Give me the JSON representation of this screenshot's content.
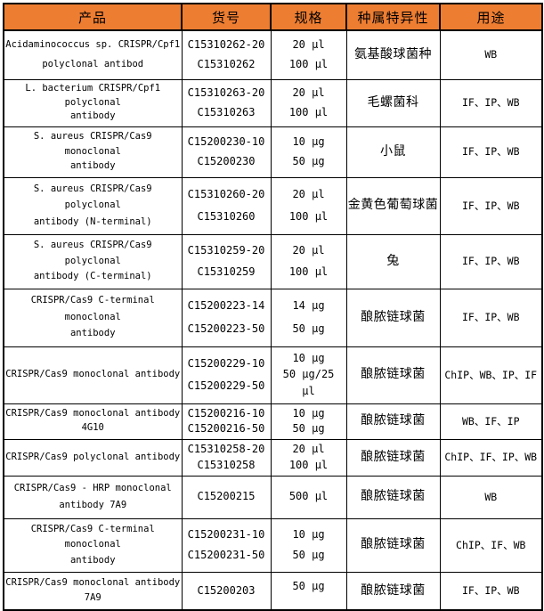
{
  "table": {
    "headers": [
      "产品",
      "货号",
      "规格",
      "种属特异性",
      "用途"
    ],
    "rows": [
      {
        "product": [
          "Acidaminococcus sp. CRISPR/Cpf1",
          "polyclonal antibod"
        ],
        "catalog": [
          "C15310262-20",
          "C15310262"
        ],
        "spec": [
          "20 μl",
          "100 μl"
        ],
        "species": "氨基酸球菌种",
        "usage": "WB"
      },
      {
        "product": [
          "L. bacterium CRISPR/Cpf1",
          "polyclonal",
          "antibody"
        ],
        "catalog": [
          "C15310263-20",
          "C15310263"
        ],
        "spec": [
          "20 μl",
          "100 μl"
        ],
        "species": "毛螺菌科",
        "usage": "IF、IP、WB"
      },
      {
        "product": [
          "S. aureus CRISPR/Cas9",
          "monoclonal",
          "antibody"
        ],
        "catalog": [
          "C15200230-10",
          "C15200230"
        ],
        "spec": [
          "10 μg",
          "50 μg"
        ],
        "species": "小鼠",
        "usage": "IF、IP、WB"
      },
      {
        "product": [
          "S. aureus CRISPR/Cas9",
          "polyclonal",
          "antibody (N-terminal)"
        ],
        "catalog": [
          "C15310260-20",
          "C15310260"
        ],
        "spec": [
          "20 μl",
          "100 μl"
        ],
        "species": "金黄色葡萄球菌",
        "usage": "IF、IP、WB"
      },
      {
        "product": [
          "S. aureus CRISPR/Cas9",
          "polyclonal",
          "antibody (C-terminal)"
        ],
        "catalog": [
          "C15310259-20",
          "C15310259"
        ],
        "spec": [
          "20 μl",
          "100 μl"
        ],
        "species": "兔",
        "usage": "IF、IP、WB"
      },
      {
        "product": [
          "CRISPR/Cas9 C-terminal",
          "monoclonal",
          "antibody"
        ],
        "catalog": [
          "C15200223-14",
          "C15200223-50"
        ],
        "spec": [
          "14 μg",
          "50 μg"
        ],
        "species": "酿脓链球菌",
        "usage": "IF、IP、WB"
      },
      {
        "product": [
          "CRISPR/Cas9 monoclonal antibody"
        ],
        "catalog": [
          "C15200229-10",
          "C15200229-50"
        ],
        "spec": [
          "10 μg",
          "50 μg/25",
          "μl"
        ],
        "species": "酿脓链球菌",
        "usage": "ChIP、WB、IP、IF"
      },
      {
        "product": [
          "CRISPR/Cas9 monoclonal antibody",
          "4G10"
        ],
        "catalog": [
          "C15200216-10",
          "C15200216-50"
        ],
        "spec": [
          "10 μg",
          "50 μg"
        ],
        "species": "酿脓链球菌",
        "usage": "WB、IF、IP"
      },
      {
        "product": [
          "CRISPR/Cas9 polyclonal antibody"
        ],
        "catalog": [
          "C15310258-20",
          "C15310258"
        ],
        "spec": [
          "20 μl",
          "100 μl"
        ],
        "species": "酿脓链球菌",
        "usage": "ChIP、IF、IP、WB"
      },
      {
        "product": [
          "CRISPR/Cas9 - HRP monoclonal",
          "antibody 7A9"
        ],
        "catalog": [
          "C15200215"
        ],
        "spec": [
          "500 μl"
        ],
        "species": "酿脓链球菌",
        "usage": "WB"
      },
      {
        "product": [
          "CRISPR/Cas9 C-terminal",
          "monoclonal",
          "antibody"
        ],
        "catalog": [
          "C15200231-10",
          "C15200231-50"
        ],
        "spec": [
          "10 μg",
          "50 μg"
        ],
        "species": "酿脓链球菌",
        "usage": "ChIP、IF、WB"
      },
      {
        "product": [
          "CRISPR/Cas9 monoclonal antibody",
          "7A9"
        ],
        "catalog": [
          "C15200203"
        ],
        "spec": [
          "50 μg",
          ""
        ],
        "species": "酿脓链球菌",
        "usage": "IF、IP、WB"
      }
    ]
  },
  "colors": {
    "header_bg": "#ED7D31",
    "header_text": "#000000",
    "border": "#000000",
    "cell_bg": "#FFFFFF"
  }
}
